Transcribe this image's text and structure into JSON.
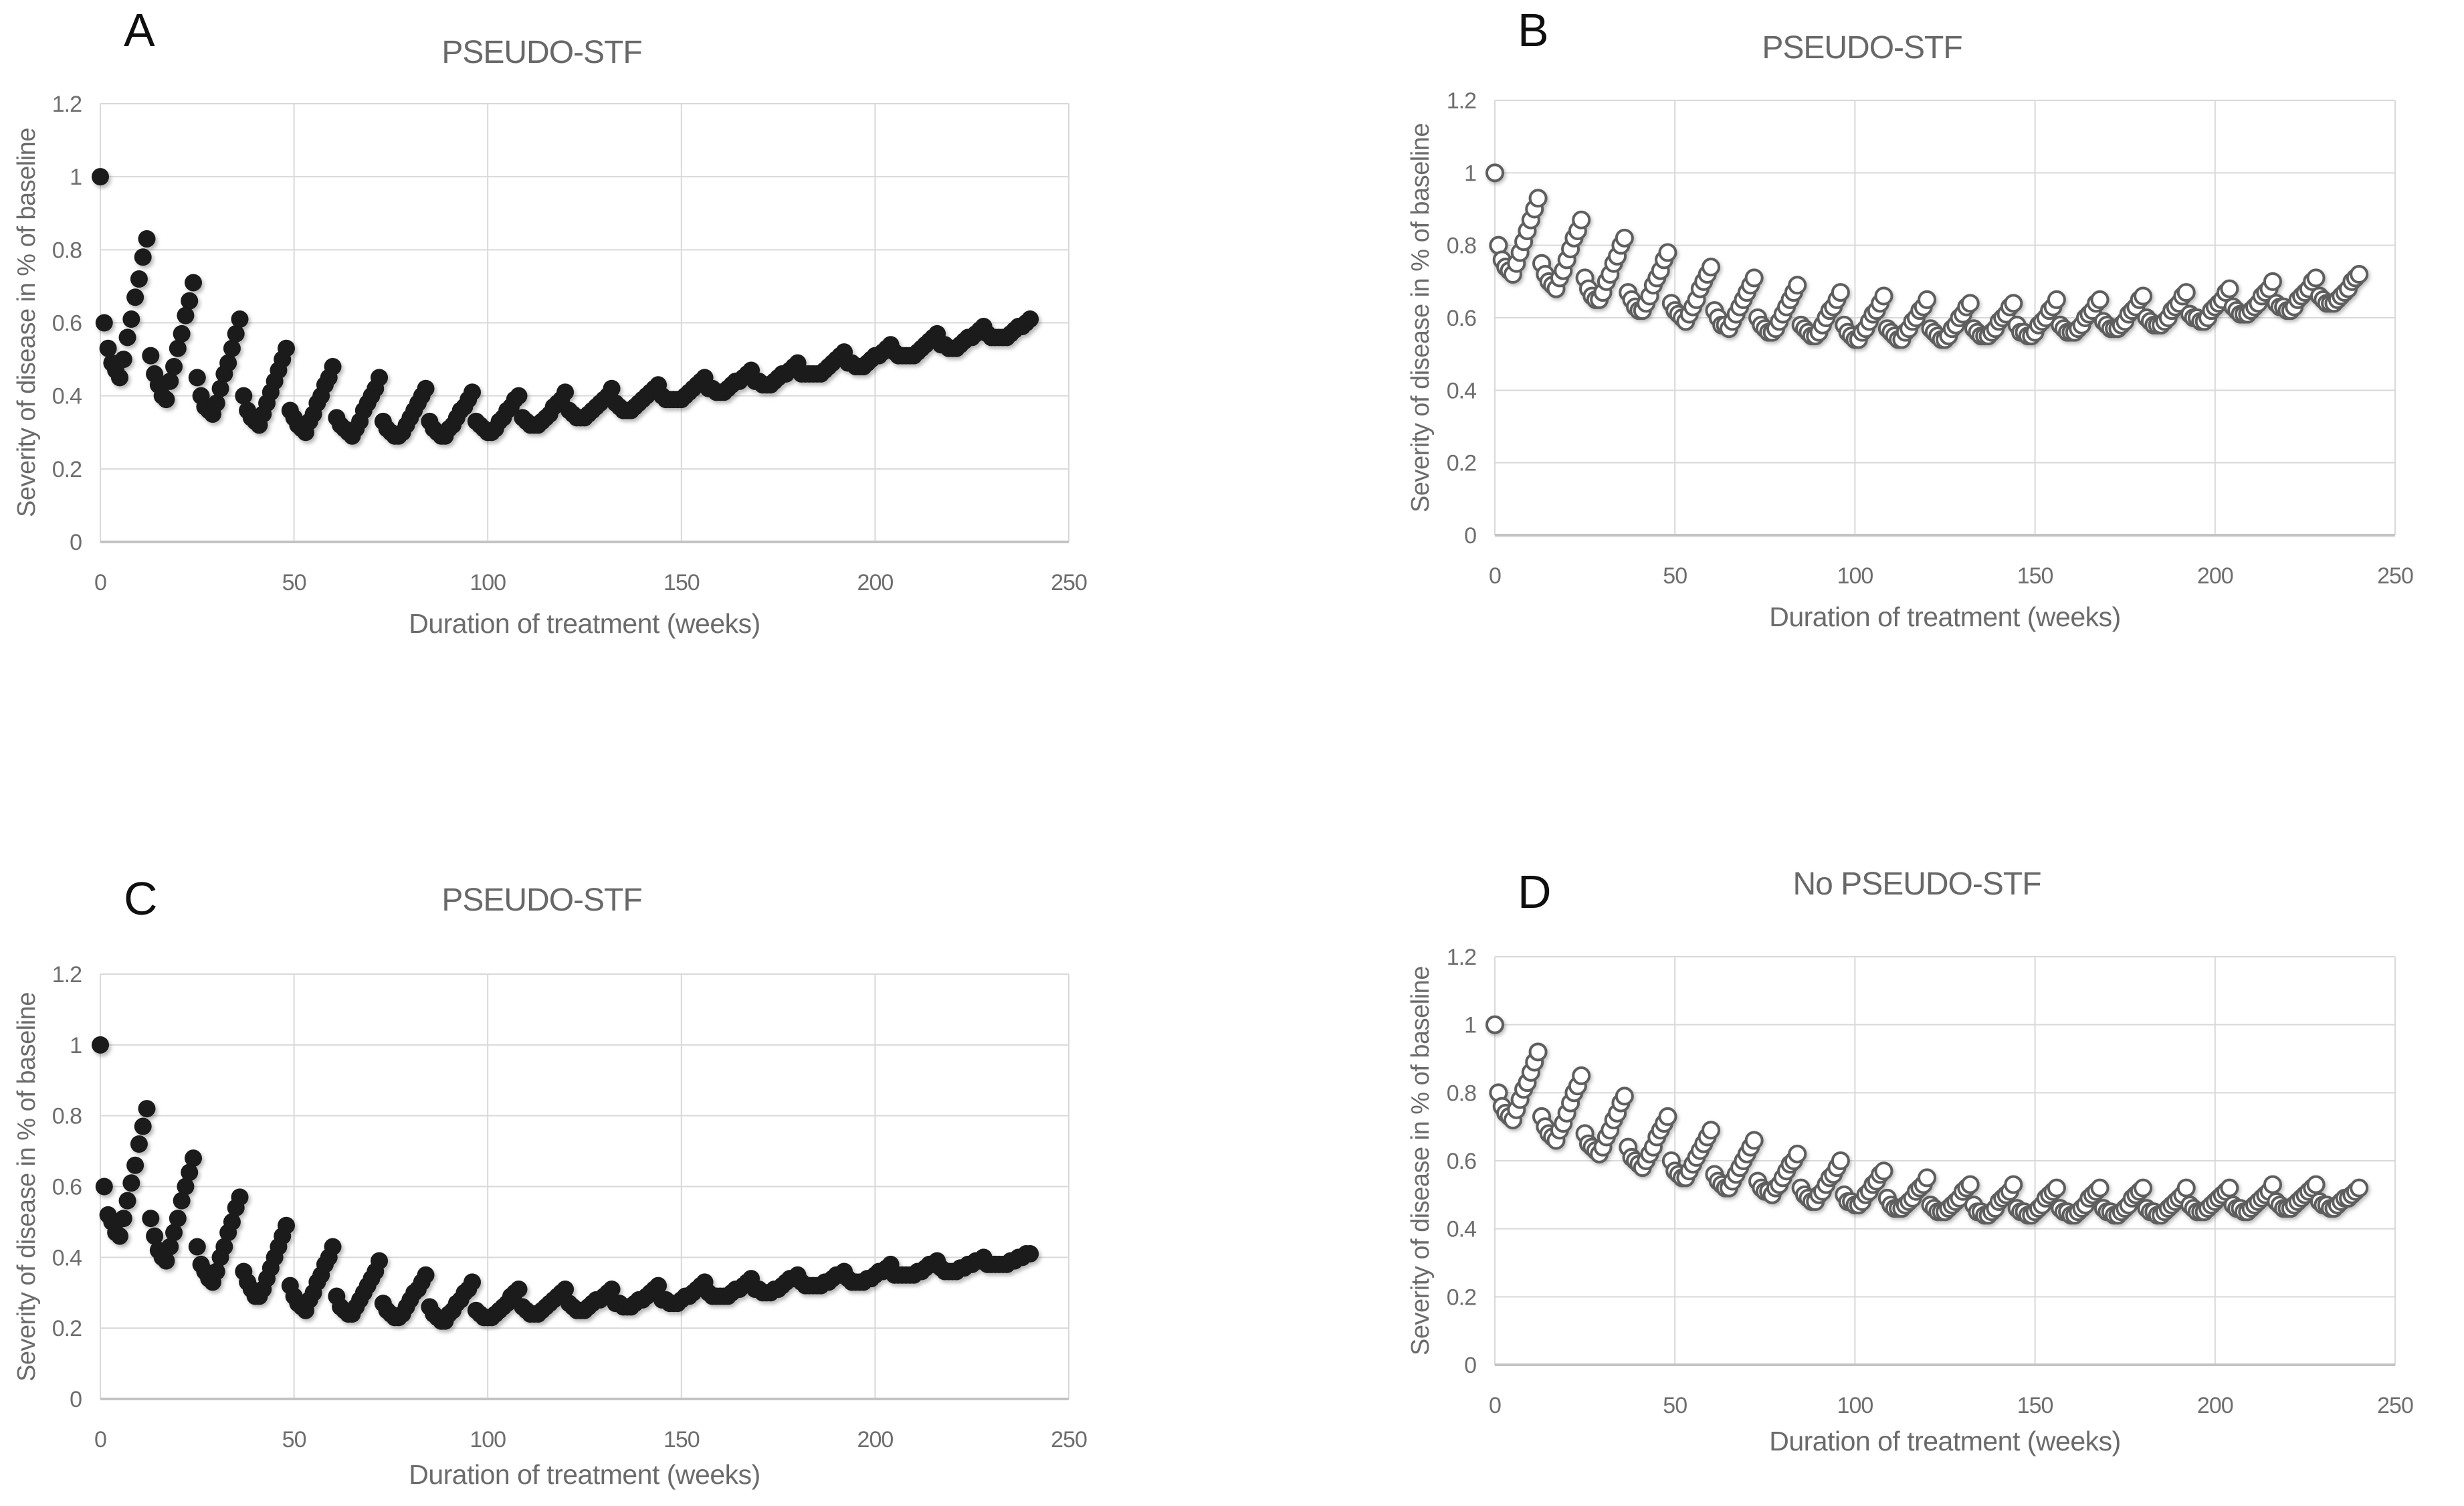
{
  "colors": {
    "background": "#ffffff",
    "gridline": "#d9d9d9",
    "axis_line": "#c3c3c3",
    "tick_text": "#6e6e6e",
    "title_text": "#686868",
    "panel_letter_text": "#0f0f0f",
    "filled_marker": "#1b1b1b",
    "open_marker_stroke": "#5e5e5e"
  },
  "chart_data": [
    {
      "type": "scatter",
      "panel_label": "A",
      "title": "PSEUDO-STF",
      "xlabel": "Duration of treatment (weeks)",
      "ylabel": "Severity of disease in % of baseline",
      "xlim": [
        0,
        250
      ],
      "ylim": [
        0,
        1.2
      ],
      "x_tick_values": [
        0,
        50,
        100,
        150,
        200,
        250
      ],
      "x_tick_labels": [
        "0",
        "50",
        "100",
        "150",
        "200",
        "250"
      ],
      "y_tick_values": [
        0,
        0.2,
        0.4,
        0.6,
        0.8,
        1,
        1.2
      ],
      "y_tick_labels": [
        "0",
        "0.2",
        "0.4",
        "0.6",
        "0.8",
        "1",
        "1.2"
      ],
      "grid": true,
      "legend": false,
      "marker": "filled-circle",
      "x_unit": "weeks",
      "x_start": 0,
      "x_step": 1,
      "y": [
        1.0,
        0.6,
        0.53,
        0.49,
        0.47,
        0.45,
        0.5,
        0.56,
        0.61,
        0.67,
        0.72,
        0.78,
        0.83,
        0.51,
        0.46,
        0.43,
        0.4,
        0.39,
        0.44,
        0.48,
        0.53,
        0.57,
        0.62,
        0.66,
        0.71,
        0.45,
        0.4,
        0.37,
        0.36,
        0.35,
        0.38,
        0.42,
        0.46,
        0.49,
        0.53,
        0.57,
        0.61,
        0.4,
        0.36,
        0.34,
        0.33,
        0.32,
        0.35,
        0.38,
        0.41,
        0.44,
        0.47,
        0.5,
        0.53,
        0.36,
        0.34,
        0.32,
        0.31,
        0.3,
        0.33,
        0.35,
        0.38,
        0.4,
        0.43,
        0.45,
        0.48,
        0.34,
        0.32,
        0.31,
        0.3,
        0.29,
        0.31,
        0.33,
        0.36,
        0.38,
        0.4,
        0.42,
        0.45,
        0.33,
        0.31,
        0.3,
        0.29,
        0.29,
        0.3,
        0.32,
        0.34,
        0.36,
        0.38,
        0.4,
        0.42,
        0.33,
        0.31,
        0.3,
        0.29,
        0.29,
        0.31,
        0.32,
        0.34,
        0.36,
        0.37,
        0.39,
        0.41,
        0.33,
        0.32,
        0.31,
        0.3,
        0.3,
        0.31,
        0.33,
        0.34,
        0.36,
        0.37,
        0.39,
        0.4,
        0.34,
        0.33,
        0.32,
        0.32,
        0.32,
        0.33,
        0.34,
        0.35,
        0.37,
        0.38,
        0.39,
        0.41,
        0.36,
        0.35,
        0.34,
        0.34,
        0.34,
        0.35,
        0.36,
        0.37,
        0.38,
        0.39,
        0.4,
        0.42,
        0.38,
        0.37,
        0.36,
        0.36,
        0.36,
        0.37,
        0.38,
        0.39,
        0.4,
        0.41,
        0.42,
        0.43,
        0.4,
        0.39,
        0.39,
        0.39,
        0.39,
        0.39,
        0.4,
        0.41,
        0.42,
        0.43,
        0.44,
        0.45,
        0.42,
        0.42,
        0.41,
        0.41,
        0.41,
        0.42,
        0.43,
        0.44,
        0.44,
        0.45,
        0.46,
        0.47,
        0.44,
        0.44,
        0.43,
        0.43,
        0.43,
        0.44,
        0.45,
        0.46,
        0.46,
        0.47,
        0.48,
        0.49,
        0.46,
        0.46,
        0.46,
        0.46,
        0.46,
        0.46,
        0.47,
        0.48,
        0.49,
        0.5,
        0.51,
        0.52,
        0.49,
        0.49,
        0.48,
        0.48,
        0.48,
        0.49,
        0.5,
        0.51,
        0.51,
        0.52,
        0.53,
        0.54,
        0.52,
        0.51,
        0.51,
        0.51,
        0.51,
        0.51,
        0.52,
        0.53,
        0.54,
        0.55,
        0.56,
        0.57,
        0.54,
        0.54,
        0.53,
        0.53,
        0.53,
        0.54,
        0.55,
        0.56,
        0.56,
        0.57,
        0.58,
        0.59,
        0.57,
        0.56,
        0.56,
        0.56,
        0.56,
        0.56,
        0.57,
        0.58,
        0.59,
        0.59,
        0.6,
        0.61
      ]
    },
    {
      "type": "scatter",
      "panel_label": "B",
      "title": "PSEUDO-STF",
      "xlabel": "Duration of treatment (weeks)",
      "ylabel": "Severity of disease in % of baseline",
      "xlim": [
        0,
        250
      ],
      "ylim": [
        0,
        1.2
      ],
      "x_tick_values": [
        0,
        50,
        100,
        150,
        200,
        250
      ],
      "x_tick_labels": [
        "0",
        "50",
        "100",
        "150",
        "200",
        "250"
      ],
      "y_tick_values": [
        0,
        0.2,
        0.4,
        0.6,
        0.8,
        1,
        1.2
      ],
      "y_tick_labels": [
        "0",
        "0.2",
        "0.4",
        "0.6",
        "0.8",
        "1",
        "1.2"
      ],
      "grid": true,
      "legend": false,
      "marker": "open-circle",
      "x_unit": "weeks",
      "x_start": 0,
      "x_step": 1,
      "y": [
        1.0,
        0.8,
        0.76,
        0.74,
        0.73,
        0.72,
        0.75,
        0.78,
        0.81,
        0.84,
        0.87,
        0.9,
        0.93,
        0.75,
        0.72,
        0.7,
        0.69,
        0.68,
        0.71,
        0.73,
        0.76,
        0.79,
        0.82,
        0.84,
        0.87,
        0.71,
        0.68,
        0.66,
        0.65,
        0.65,
        0.67,
        0.7,
        0.72,
        0.75,
        0.77,
        0.8,
        0.82,
        0.67,
        0.65,
        0.63,
        0.62,
        0.62,
        0.64,
        0.66,
        0.69,
        0.71,
        0.73,
        0.76,
        0.78,
        0.64,
        0.62,
        0.61,
        0.6,
        0.59,
        0.61,
        0.63,
        0.65,
        0.68,
        0.7,
        0.72,
        0.74,
        0.62,
        0.6,
        0.58,
        0.58,
        0.57,
        0.59,
        0.61,
        0.63,
        0.65,
        0.67,
        0.69,
        0.71,
        0.6,
        0.58,
        0.57,
        0.56,
        0.56,
        0.57,
        0.59,
        0.61,
        0.63,
        0.65,
        0.67,
        0.69,
        0.58,
        0.57,
        0.56,
        0.55,
        0.55,
        0.56,
        0.58,
        0.6,
        0.62,
        0.63,
        0.65,
        0.67,
        0.58,
        0.56,
        0.55,
        0.54,
        0.54,
        0.56,
        0.57,
        0.59,
        0.61,
        0.62,
        0.64,
        0.66,
        0.57,
        0.56,
        0.55,
        0.54,
        0.54,
        0.56,
        0.57,
        0.59,
        0.6,
        0.62,
        0.63,
        0.65,
        0.57,
        0.56,
        0.55,
        0.54,
        0.54,
        0.55,
        0.57,
        0.58,
        0.6,
        0.61,
        0.63,
        0.64,
        0.57,
        0.56,
        0.55,
        0.55,
        0.55,
        0.56,
        0.57,
        0.59,
        0.6,
        0.61,
        0.63,
        0.64,
        0.58,
        0.56,
        0.56,
        0.55,
        0.55,
        0.56,
        0.58,
        0.59,
        0.6,
        0.62,
        0.63,
        0.65,
        0.58,
        0.57,
        0.56,
        0.56,
        0.56,
        0.57,
        0.58,
        0.6,
        0.61,
        0.62,
        0.64,
        0.65,
        0.59,
        0.58,
        0.57,
        0.57,
        0.57,
        0.58,
        0.59,
        0.61,
        0.62,
        0.63,
        0.65,
        0.66,
        0.6,
        0.59,
        0.58,
        0.58,
        0.58,
        0.59,
        0.6,
        0.62,
        0.63,
        0.64,
        0.66,
        0.67,
        0.61,
        0.6,
        0.6,
        0.59,
        0.59,
        0.6,
        0.62,
        0.63,
        0.64,
        0.65,
        0.67,
        0.68,
        0.63,
        0.62,
        0.61,
        0.61,
        0.61,
        0.62,
        0.63,
        0.64,
        0.66,
        0.67,
        0.68,
        0.7,
        0.64,
        0.63,
        0.63,
        0.62,
        0.62,
        0.63,
        0.65,
        0.66,
        0.67,
        0.68,
        0.7,
        0.71,
        0.66,
        0.65,
        0.64,
        0.64,
        0.64,
        0.65,
        0.66,
        0.67,
        0.68,
        0.7,
        0.71,
        0.72
      ]
    },
    {
      "type": "scatter",
      "panel_label": "C",
      "title": "PSEUDO-STF",
      "xlabel": "Duration of treatment (weeks)",
      "ylabel": "Severity of disease in % of baseline",
      "xlim": [
        0,
        250
      ],
      "ylim": [
        0,
        1.2
      ],
      "x_tick_values": [
        0,
        50,
        100,
        150,
        200,
        250
      ],
      "x_tick_labels": [
        "0",
        "50",
        "100",
        "150",
        "200",
        "250"
      ],
      "y_tick_values": [
        0,
        0.2,
        0.4,
        0.6,
        0.8,
        1,
        1.2
      ],
      "y_tick_labels": [
        "0",
        "0.2",
        "0.4",
        "0.6",
        "0.8",
        "1",
        "1.2"
      ],
      "grid": true,
      "legend": false,
      "marker": "filled-circle",
      "x_unit": "weeks",
      "x_start": 0,
      "x_step": 1,
      "y": [
        1.0,
        0.6,
        0.52,
        0.5,
        0.47,
        0.46,
        0.51,
        0.56,
        0.61,
        0.66,
        0.72,
        0.77,
        0.82,
        0.51,
        0.46,
        0.42,
        0.4,
        0.39,
        0.43,
        0.47,
        0.51,
        0.56,
        0.6,
        0.64,
        0.68,
        0.43,
        0.38,
        0.36,
        0.34,
        0.33,
        0.36,
        0.4,
        0.43,
        0.47,
        0.5,
        0.54,
        0.57,
        0.36,
        0.33,
        0.31,
        0.29,
        0.29,
        0.31,
        0.34,
        0.37,
        0.4,
        0.43,
        0.46,
        0.49,
        0.32,
        0.29,
        0.27,
        0.26,
        0.25,
        0.28,
        0.3,
        0.33,
        0.35,
        0.38,
        0.4,
        0.43,
        0.29,
        0.26,
        0.25,
        0.24,
        0.24,
        0.26,
        0.28,
        0.3,
        0.32,
        0.34,
        0.36,
        0.39,
        0.27,
        0.25,
        0.24,
        0.23,
        0.23,
        0.24,
        0.26,
        0.28,
        0.3,
        0.31,
        0.33,
        0.35,
        0.26,
        0.24,
        0.23,
        0.22,
        0.22,
        0.24,
        0.25,
        0.27,
        0.28,
        0.3,
        0.31,
        0.33,
        0.25,
        0.24,
        0.23,
        0.23,
        0.23,
        0.24,
        0.25,
        0.26,
        0.27,
        0.29,
        0.3,
        0.31,
        0.26,
        0.25,
        0.24,
        0.24,
        0.24,
        0.25,
        0.26,
        0.27,
        0.28,
        0.29,
        0.3,
        0.31,
        0.27,
        0.26,
        0.25,
        0.25,
        0.25,
        0.26,
        0.27,
        0.28,
        0.28,
        0.29,
        0.3,
        0.31,
        0.27,
        0.27,
        0.26,
        0.26,
        0.26,
        0.27,
        0.28,
        0.28,
        0.29,
        0.3,
        0.31,
        0.32,
        0.28,
        0.28,
        0.27,
        0.27,
        0.27,
        0.28,
        0.29,
        0.29,
        0.3,
        0.31,
        0.32,
        0.33,
        0.3,
        0.29,
        0.29,
        0.29,
        0.29,
        0.29,
        0.3,
        0.31,
        0.31,
        0.32,
        0.33,
        0.34,
        0.31,
        0.31,
        0.3,
        0.3,
        0.3,
        0.31,
        0.31,
        0.32,
        0.33,
        0.34,
        0.34,
        0.35,
        0.33,
        0.32,
        0.32,
        0.32,
        0.32,
        0.32,
        0.33,
        0.33,
        0.34,
        0.35,
        0.35,
        0.36,
        0.34,
        0.33,
        0.33,
        0.33,
        0.33,
        0.34,
        0.34,
        0.35,
        0.36,
        0.36,
        0.37,
        0.38,
        0.35,
        0.35,
        0.35,
        0.35,
        0.35,
        0.35,
        0.36,
        0.36,
        0.37,
        0.38,
        0.38,
        0.39,
        0.37,
        0.36,
        0.36,
        0.36,
        0.36,
        0.37,
        0.37,
        0.38,
        0.38,
        0.39,
        0.39,
        0.4,
        0.38,
        0.38,
        0.38,
        0.38,
        0.38,
        0.38,
        0.39,
        0.39,
        0.4,
        0.4,
        0.41,
        0.41
      ]
    },
    {
      "type": "scatter",
      "panel_label": "D",
      "title": "No PSEUDO-STF",
      "xlabel": "Duration of treatment (weeks)",
      "ylabel": "Severity of disease in % of baseline",
      "xlim": [
        0,
        250
      ],
      "ylim": [
        0,
        1.2
      ],
      "x_tick_values": [
        0,
        50,
        100,
        150,
        200,
        250
      ],
      "x_tick_labels": [
        "0",
        "50",
        "100",
        "150",
        "200",
        "250"
      ],
      "y_tick_values": [
        0,
        0.2,
        0.4,
        0.6,
        0.8,
        1,
        1.2
      ],
      "y_tick_labels": [
        "0",
        "0.2",
        "0.4",
        "0.6",
        "0.8",
        "1",
        "1.2"
      ],
      "grid": true,
      "legend": false,
      "marker": "open-circle",
      "x_unit": "weeks",
      "x_start": 0,
      "x_step": 1,
      "y": [
        1.0,
        0.8,
        0.76,
        0.74,
        0.73,
        0.72,
        0.75,
        0.78,
        0.81,
        0.83,
        0.86,
        0.89,
        0.92,
        0.73,
        0.7,
        0.68,
        0.67,
        0.66,
        0.69,
        0.71,
        0.74,
        0.77,
        0.8,
        0.82,
        0.85,
        0.68,
        0.65,
        0.64,
        0.63,
        0.62,
        0.64,
        0.67,
        0.69,
        0.72,
        0.74,
        0.77,
        0.79,
        0.64,
        0.61,
        0.6,
        0.59,
        0.58,
        0.6,
        0.62,
        0.64,
        0.67,
        0.69,
        0.71,
        0.73,
        0.6,
        0.57,
        0.56,
        0.55,
        0.55,
        0.57,
        0.59,
        0.61,
        0.63,
        0.65,
        0.67,
        0.69,
        0.56,
        0.54,
        0.53,
        0.52,
        0.52,
        0.54,
        0.56,
        0.58,
        0.6,
        0.62,
        0.64,
        0.66,
        0.54,
        0.52,
        0.51,
        0.51,
        0.5,
        0.52,
        0.53,
        0.55,
        0.57,
        0.59,
        0.6,
        0.62,
        0.52,
        0.5,
        0.49,
        0.48,
        0.48,
        0.5,
        0.51,
        0.53,
        0.55,
        0.56,
        0.58,
        0.6,
        0.5,
        0.48,
        0.48,
        0.47,
        0.47,
        0.48,
        0.5,
        0.51,
        0.53,
        0.54,
        0.56,
        0.57,
        0.49,
        0.47,
        0.46,
        0.46,
        0.46,
        0.47,
        0.48,
        0.49,
        0.51,
        0.52,
        0.53,
        0.55,
        0.47,
        0.46,
        0.45,
        0.45,
        0.45,
        0.46,
        0.47,
        0.48,
        0.49,
        0.51,
        0.52,
        0.53,
        0.47,
        0.45,
        0.45,
        0.44,
        0.44,
        0.45,
        0.46,
        0.48,
        0.49,
        0.5,
        0.51,
        0.53,
        0.46,
        0.45,
        0.45,
        0.44,
        0.44,
        0.45,
        0.46,
        0.47,
        0.49,
        0.5,
        0.51,
        0.52,
        0.46,
        0.45,
        0.45,
        0.44,
        0.44,
        0.45,
        0.46,
        0.47,
        0.49,
        0.5,
        0.51,
        0.52,
        0.46,
        0.45,
        0.45,
        0.44,
        0.44,
        0.45,
        0.46,
        0.47,
        0.49,
        0.5,
        0.51,
        0.52,
        0.46,
        0.45,
        0.45,
        0.44,
        0.44,
        0.45,
        0.46,
        0.47,
        0.48,
        0.49,
        0.5,
        0.52,
        0.47,
        0.46,
        0.45,
        0.45,
        0.45,
        0.46,
        0.47,
        0.48,
        0.49,
        0.5,
        0.51,
        0.52,
        0.47,
        0.46,
        0.46,
        0.45,
        0.45,
        0.46,
        0.47,
        0.48,
        0.49,
        0.5,
        0.51,
        0.53,
        0.48,
        0.47,
        0.46,
        0.46,
        0.46,
        0.47,
        0.48,
        0.49,
        0.5,
        0.51,
        0.52,
        0.53,
        0.48,
        0.47,
        0.47,
        0.46,
        0.46,
        0.47,
        0.48,
        0.49,
        0.49,
        0.5,
        0.51,
        0.52
      ]
    }
  ]
}
